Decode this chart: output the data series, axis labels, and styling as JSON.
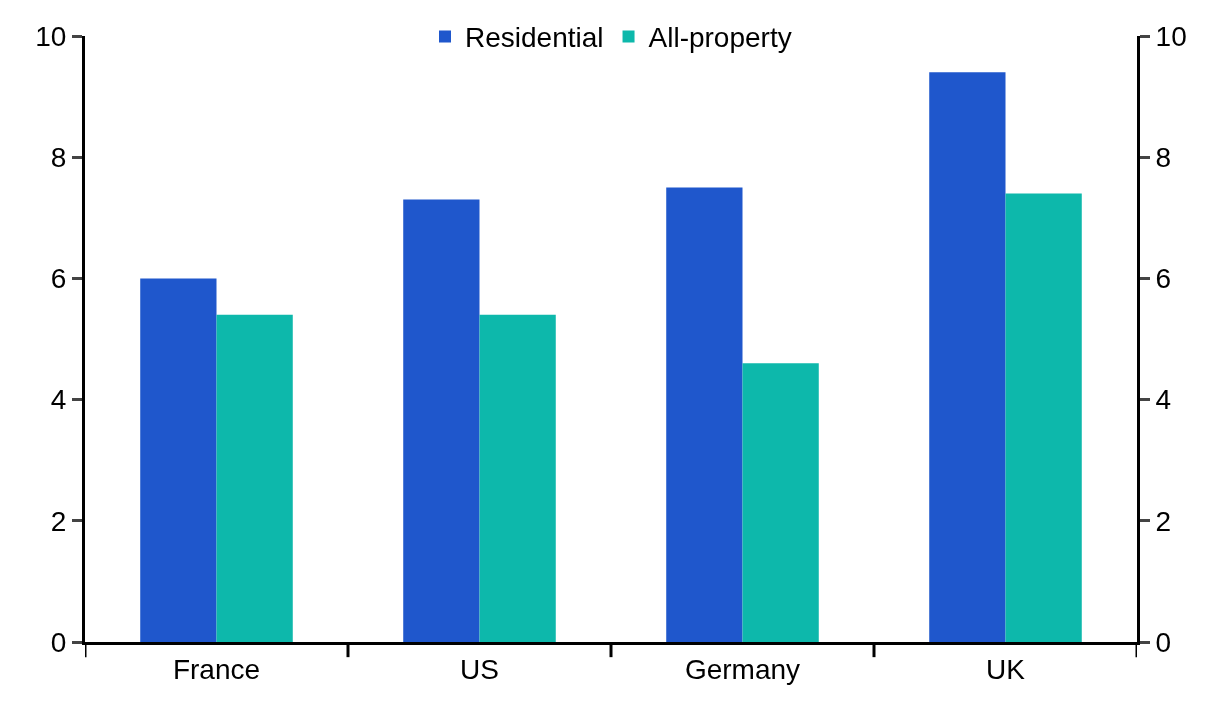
{
  "chart_data": {
    "type": "bar",
    "categories": [
      "France",
      "US",
      "Germany",
      "UK"
    ],
    "series": [
      {
        "name": "Residential",
        "color": "#1f57cc",
        "values": [
          6.0,
          7.3,
          7.5,
          9.4
        ]
      },
      {
        "name": "All-property",
        "color": "#0db8ab",
        "values": [
          5.4,
          5.4,
          4.6,
          7.4
        ]
      }
    ],
    "ylim": [
      0,
      10
    ],
    "yticks": [
      0,
      2,
      4,
      6,
      8,
      10
    ],
    "y2lim": [
      0,
      10
    ],
    "y2ticks": [
      0,
      2,
      4,
      6,
      8,
      10
    ],
    "grid": false,
    "legend": "top"
  }
}
